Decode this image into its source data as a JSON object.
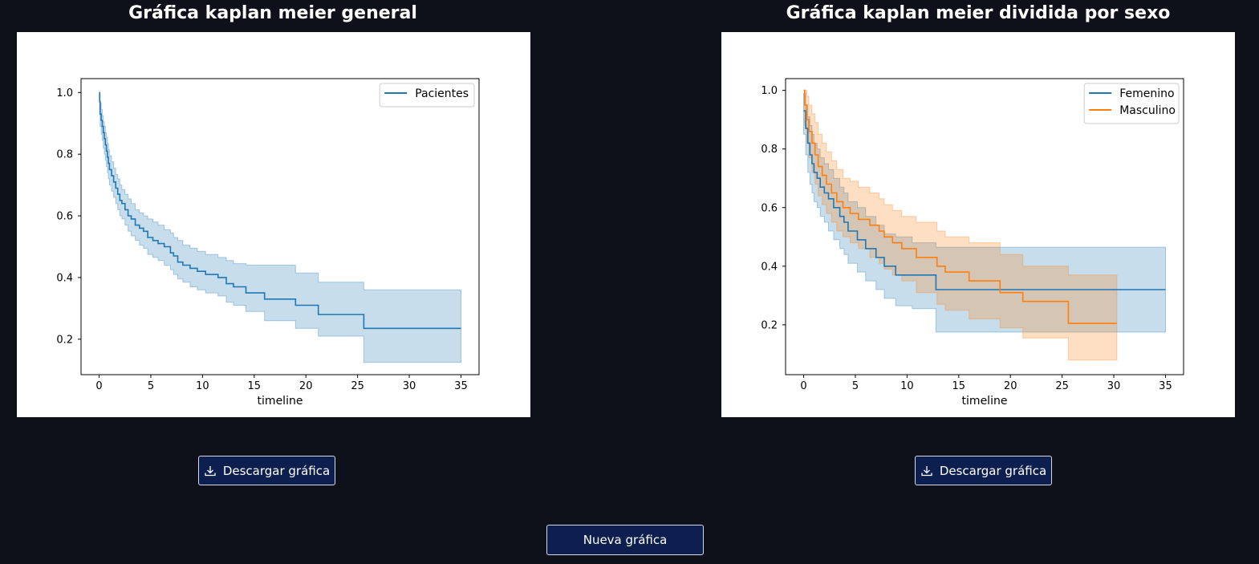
{
  "left_panel": {
    "title": "Gráfica kaplan meier general",
    "download_label": "Descargar gráfica"
  },
  "right_panel": {
    "title": "Gráfica kaplan meier dividida por sexo",
    "download_label": "Descargar gráfica"
  },
  "new_chart_label": "Nueva gráfica",
  "icons": {
    "download": "download-icon"
  },
  "colors": {
    "background": "#0e111a",
    "button_bg": "#0d1f4e",
    "blue": "#1f77b4",
    "orange": "#ff7f0e"
  },
  "chart_data": [
    {
      "type": "line",
      "step": true,
      "xlabel": "timeline",
      "ylabel": "",
      "xlim": [
        -1.75,
        36.75
      ],
      "ylim": [
        0.085,
        1.045
      ],
      "xticks": [
        0,
        5,
        10,
        15,
        20,
        25,
        30,
        35
      ],
      "yticks": [
        0.2,
        0.4,
        0.6,
        0.8,
        1.0
      ],
      "legend_position": "top-right",
      "series": [
        {
          "name": "Pacientes",
          "color": "#1f77b4",
          "x": [
            0,
            0.05,
            0.1,
            0.2,
            0.3,
            0.4,
            0.5,
            0.6,
            0.7,
            0.8,
            0.9,
            1.0,
            1.2,
            1.4,
            1.6,
            1.8,
            2.0,
            2.2,
            2.5,
            2.8,
            3.1,
            3.5,
            3.9,
            4.3,
            4.7,
            5.2,
            5.7,
            6.3,
            6.9,
            7.2,
            7.6,
            8.1,
            8.8,
            9.5,
            10.3,
            11.5,
            12.3,
            13.0,
            14.2,
            16.0,
            19.0,
            21.2,
            25.6,
            35.0
          ],
          "y": [
            1.0,
            0.97,
            0.93,
            0.91,
            0.89,
            0.87,
            0.85,
            0.83,
            0.81,
            0.79,
            0.77,
            0.75,
            0.73,
            0.71,
            0.69,
            0.67,
            0.65,
            0.64,
            0.62,
            0.6,
            0.59,
            0.57,
            0.56,
            0.55,
            0.53,
            0.52,
            0.51,
            0.5,
            0.48,
            0.47,
            0.45,
            0.44,
            0.43,
            0.42,
            0.41,
            0.4,
            0.38,
            0.37,
            0.35,
            0.33,
            0.31,
            0.28,
            0.235,
            0.235
          ],
          "ci_upper": [
            1.0,
            0.995,
            0.965,
            0.945,
            0.925,
            0.905,
            0.89,
            0.87,
            0.855,
            0.835,
            0.815,
            0.795,
            0.775,
            0.755,
            0.735,
            0.72,
            0.7,
            0.685,
            0.67,
            0.655,
            0.64,
            0.62,
            0.61,
            0.6,
            0.59,
            0.58,
            0.57,
            0.555,
            0.545,
            0.53,
            0.52,
            0.505,
            0.495,
            0.485,
            0.475,
            0.465,
            0.455,
            0.445,
            0.44,
            0.44,
            0.415,
            0.385,
            0.36,
            0.36
          ],
          "ci_lower": [
            1.0,
            0.93,
            0.89,
            0.865,
            0.845,
            0.82,
            0.8,
            0.78,
            0.76,
            0.74,
            0.72,
            0.7,
            0.68,
            0.66,
            0.64,
            0.62,
            0.6,
            0.59,
            0.57,
            0.55,
            0.535,
            0.52,
            0.505,
            0.495,
            0.475,
            0.465,
            0.455,
            0.44,
            0.425,
            0.41,
            0.395,
            0.385,
            0.37,
            0.36,
            0.35,
            0.34,
            0.32,
            0.31,
            0.29,
            0.26,
            0.235,
            0.21,
            0.125,
            0.125
          ]
        }
      ]
    },
    {
      "type": "line",
      "step": true,
      "xlabel": "timeline",
      "ylabel": "",
      "xlim": [
        -1.75,
        36.75
      ],
      "ylim": [
        0.03,
        1.04
      ],
      "xticks": [
        0,
        5,
        10,
        15,
        20,
        25,
        30,
        35
      ],
      "yticks": [
        0.2,
        0.4,
        0.6,
        0.8,
        1.0
      ],
      "legend_position": "top-right",
      "series": [
        {
          "name": "Femenino",
          "color": "#1f77b4",
          "x": [
            0,
            0.2,
            0.4,
            0.6,
            0.8,
            1.0,
            1.3,
            1.6,
            2.0,
            2.4,
            2.9,
            3.5,
            3.9,
            4.3,
            5.2,
            6.0,
            7.0,
            7.8,
            8.9,
            10.5,
            12.8,
            35.0
          ],
          "y": [
            0.93,
            0.87,
            0.82,
            0.78,
            0.75,
            0.72,
            0.7,
            0.67,
            0.65,
            0.63,
            0.6,
            0.57,
            0.55,
            0.52,
            0.49,
            0.46,
            0.43,
            0.4,
            0.37,
            0.37,
            0.32,
            0.32
          ],
          "ci_upper": [
            0.99,
            0.95,
            0.91,
            0.88,
            0.85,
            0.82,
            0.8,
            0.77,
            0.75,
            0.73,
            0.7,
            0.67,
            0.65,
            0.62,
            0.6,
            0.57,
            0.54,
            0.51,
            0.5,
            0.48,
            0.465,
            0.465
          ],
          "ci_lower": [
            0.85,
            0.78,
            0.72,
            0.68,
            0.65,
            0.62,
            0.6,
            0.57,
            0.55,
            0.52,
            0.49,
            0.46,
            0.44,
            0.41,
            0.38,
            0.35,
            0.32,
            0.29,
            0.265,
            0.255,
            0.175,
            0.175
          ]
        },
        {
          "name": "Masculino",
          "color": "#ff7f0e",
          "x": [
            0,
            0.1,
            0.3,
            0.5,
            0.8,
            1.1,
            1.4,
            1.8,
            2.2,
            2.7,
            3.2,
            3.8,
            4.5,
            5.3,
            6.4,
            7.3,
            7.8,
            8.6,
            9.5,
            10.9,
            12.9,
            13.7,
            16.0,
            19.0,
            21.2,
            25.6,
            30.3
          ],
          "y": [
            1.0,
            0.95,
            0.9,
            0.86,
            0.82,
            0.78,
            0.74,
            0.71,
            0.68,
            0.65,
            0.62,
            0.6,
            0.58,
            0.56,
            0.54,
            0.52,
            0.5,
            0.48,
            0.46,
            0.43,
            0.4,
            0.38,
            0.35,
            0.31,
            0.28,
            0.205,
            0.205
          ],
          "ci_upper": [
            1.0,
            1.0,
            0.98,
            0.95,
            0.92,
            0.89,
            0.85,
            0.82,
            0.79,
            0.76,
            0.73,
            0.7,
            0.69,
            0.67,
            0.65,
            0.63,
            0.61,
            0.59,
            0.57,
            0.55,
            0.52,
            0.5,
            0.48,
            0.44,
            0.4,
            0.37,
            0.37
          ],
          "ci_lower": [
            1.0,
            0.88,
            0.82,
            0.77,
            0.72,
            0.68,
            0.64,
            0.61,
            0.58,
            0.55,
            0.52,
            0.5,
            0.48,
            0.46,
            0.43,
            0.41,
            0.39,
            0.37,
            0.35,
            0.31,
            0.27,
            0.25,
            0.22,
            0.19,
            0.155,
            0.08,
            0.08
          ]
        }
      ]
    }
  ]
}
